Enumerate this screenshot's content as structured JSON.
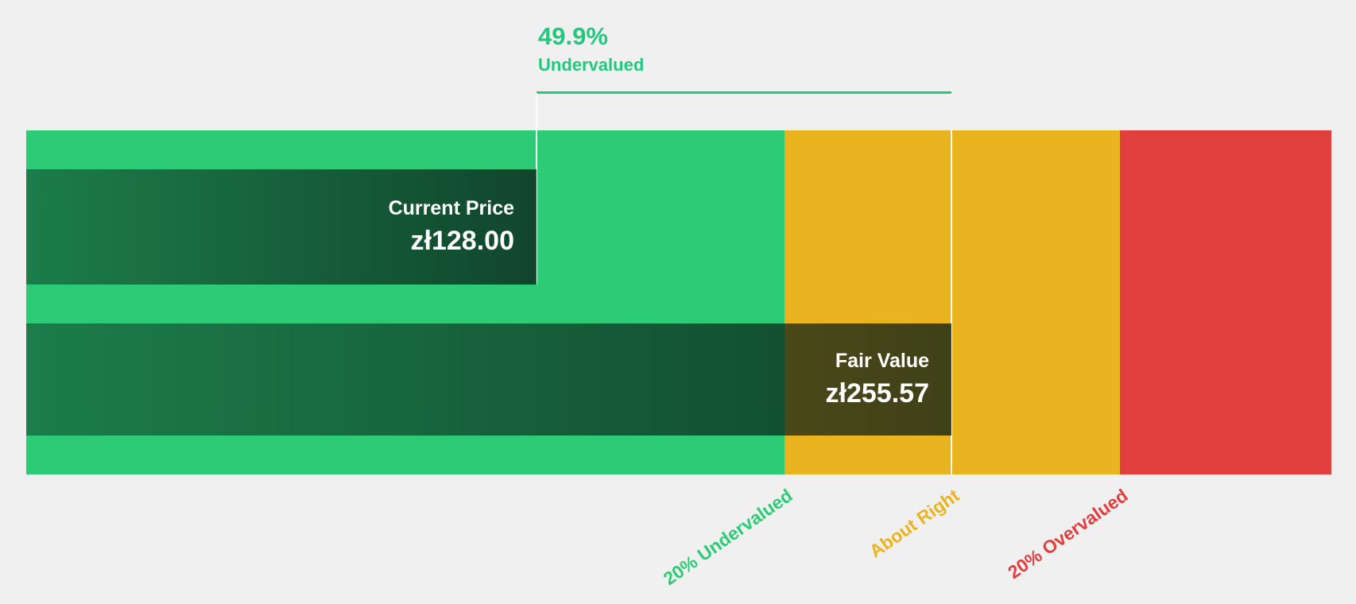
{
  "background": "#f0f0f1",
  "annotation": {
    "percent": "49.9%",
    "label": "Undervalued",
    "color": "#21c87e"
  },
  "current_price": {
    "label": "Current Price",
    "value": "zł128.00"
  },
  "fair_value": {
    "label": "Fair Value",
    "value": "zł255.57"
  },
  "zones": [
    {
      "id": "undervalued",
      "label": "20% Undervalued",
      "color": "#2dcb75"
    },
    {
      "id": "about-right",
      "label": "About Right",
      "color": "#eab420"
    },
    {
      "id": "overvalued",
      "label": "20% Overvalued",
      "color": "#e13e3e"
    }
  ],
  "chart_data": {
    "type": "bar",
    "currency_symbol": "zł",
    "current_price": 128.0,
    "fair_value": 255.57,
    "discount_percent": 49.9,
    "valuation_status": "Undervalued",
    "zones": [
      {
        "label": "20% Undervalued",
        "color": "#2dcb75",
        "range": "price below 80% of fair value"
      },
      {
        "label": "About Right",
        "color": "#eab420",
        "range": "price within 20% of fair value"
      },
      {
        "label": "20% Overvalued",
        "color": "#e13e3e",
        "range": "price above 120% of fair value"
      }
    ]
  }
}
